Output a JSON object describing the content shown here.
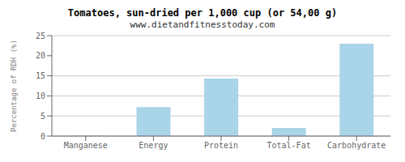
{
  "chart_data": {
    "type": "bar",
    "title": "Tomatoes, sun-dried per 1,000 cup (or 54,00 g)",
    "subtitle": "www.dietandfitnesstoday.com",
    "categories": [
      "Manganese",
      "Energy",
      "Protein",
      "Total-Fat",
      "Carbohydrate"
    ],
    "values": [
      0.15,
      7.2,
      14.3,
      2.0,
      23.0
    ],
    "color": "#aad4e8",
    "ylabel": "Percentage of RDH (%)",
    "ylim": [
      0,
      25
    ],
    "yticks": [
      0,
      5,
      10,
      15,
      20,
      25
    ],
    "grid": true
  }
}
